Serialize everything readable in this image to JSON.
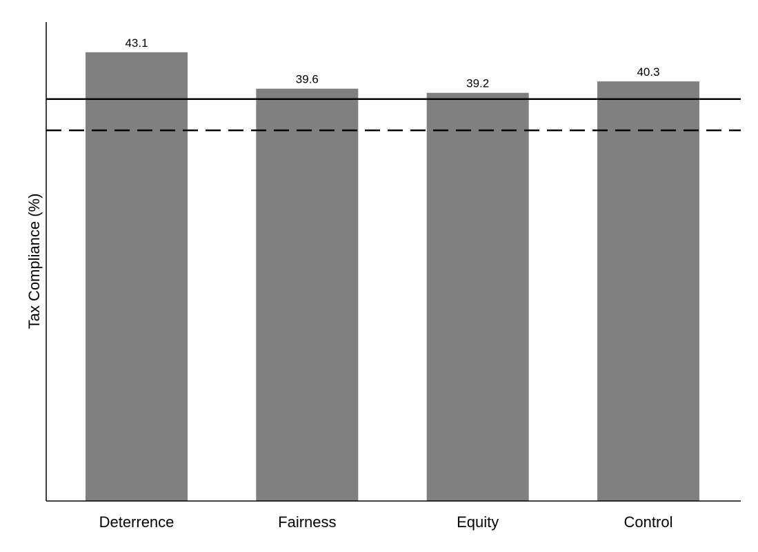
{
  "chart_data": {
    "type": "bar",
    "title": "",
    "xlabel": "",
    "ylabel": "Tax Compliance (%)",
    "categories": [
      "Deterrence",
      "Fairness",
      "Equity",
      "Control"
    ],
    "values": [
      43.1,
      39.6,
      39.2,
      40.3
    ],
    "data_labels": [
      "43.1",
      "39.6",
      "39.2",
      "40.3"
    ],
    "ylim": [
      0,
      46
    ],
    "reference_lines": [
      {
        "style": "solid",
        "value": 38.6
      },
      {
        "style": "dashed",
        "value": 35.6
      }
    ],
    "bar_color": "#808080",
    "grid": false,
    "y_ticks_shown": false
  }
}
